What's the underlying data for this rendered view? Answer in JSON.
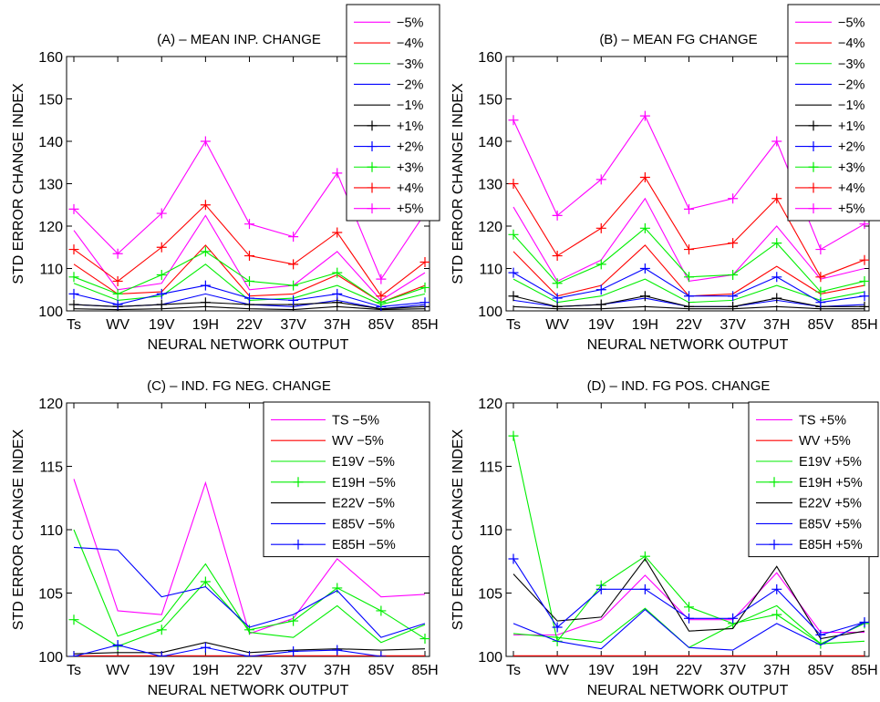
{
  "chart_data": [
    {
      "type": "line",
      "title": "(A) – MEAN INP. CHANGE",
      "xlabel": "NEURAL NETWORK OUTPUT",
      "ylabel": "STD ERROR CHANGE INDEX",
      "categories": [
        "Ts",
        "WV",
        "19V",
        "19H",
        "22V",
        "37V",
        "37H",
        "85V",
        "85H"
      ],
      "ylim": [
        100,
        160
      ],
      "yticks": [
        100,
        110,
        120,
        130,
        140,
        150,
        160
      ],
      "grid": false,
      "legend_position": "top-right",
      "series": [
        {
          "name": "−5%",
          "color": "#ff00ff",
          "marker": "none",
          "values": [
            119,
            105,
            106.5,
            122.5,
            105,
            106,
            114,
            102.5,
            109
          ]
        },
        {
          "name": "−4%",
          "color": "#ff0000",
          "marker": "none",
          "values": [
            111,
            104,
            104.5,
            115.5,
            103.5,
            104,
            108.5,
            102,
            106
          ]
        },
        {
          "name": "−3%",
          "color": "#00ee00",
          "marker": "none",
          "values": [
            106.5,
            102.5,
            103.5,
            111,
            102.5,
            103,
            106,
            101.5,
            104
          ]
        },
        {
          "name": "−2%",
          "color": "#0000ff",
          "marker": "none",
          "values": [
            101.5,
            101,
            101.5,
            104,
            101.5,
            101,
            102.5,
            100.5,
            101.5
          ]
        },
        {
          "name": "−1%",
          "color": "#000000",
          "marker": "none",
          "values": [
            100.5,
            100.3,
            100.5,
            101,
            100.5,
            100.3,
            101,
            100.3,
            100.5
          ]
        },
        {
          "name": "+1%",
          "color": "#000000",
          "marker": "plus",
          "values": [
            101.5,
            101,
            101.5,
            102,
            101.5,
            101.5,
            102,
            100.5,
            101
          ]
        },
        {
          "name": "+2%",
          "color": "#0000ff",
          "marker": "plus",
          "values": [
            104,
            101.5,
            104,
            106,
            103,
            102.5,
            104,
            101,
            102
          ]
        },
        {
          "name": "+3%",
          "color": "#00ee00",
          "marker": "plus",
          "values": [
            108,
            104,
            108.5,
            114,
            107,
            106,
            109,
            102,
            105.5
          ]
        },
        {
          "name": "+4%",
          "color": "#ff0000",
          "marker": "plus",
          "values": [
            114.5,
            107,
            115,
            125,
            113,
            111,
            118.5,
            103.5,
            111.5
          ]
        },
        {
          "name": "+5%",
          "color": "#ff00ff",
          "marker": "plus",
          "values": [
            124,
            113.5,
            123,
            140,
            120.5,
            117.5,
            132.5,
            107.5,
            123
          ]
        }
      ]
    },
    {
      "type": "line",
      "title": "(B) – MEAN FG CHANGE",
      "xlabel": "NEURAL NETWORK OUTPUT",
      "ylabel": "STD ERROR CHANGE INDEX",
      "categories": [
        "Ts",
        "WV",
        "19V",
        "19H",
        "22V",
        "37V",
        "37H",
        "85V",
        "85H"
      ],
      "ylim": [
        100,
        160
      ],
      "yticks": [
        100,
        110,
        120,
        130,
        140,
        150,
        160
      ],
      "grid": false,
      "legend_position": "top-right",
      "series": [
        {
          "name": "−5%",
          "color": "#ff00ff",
          "marker": "none",
          "values": [
            124.5,
            107,
            112,
            126.5,
            107,
            108.5,
            120,
            107.5,
            110
          ]
        },
        {
          "name": "−4%",
          "color": "#ff0000",
          "marker": "none",
          "values": [
            114,
            103.5,
            106,
            115.5,
            103.5,
            104,
            110.5,
            104,
            106
          ]
        },
        {
          "name": "−3%",
          "color": "#00ee00",
          "marker": "none",
          "values": [
            107.5,
            102,
            103.5,
            107.5,
            102,
            102.5,
            106,
            102.5,
            104.5
          ]
        },
        {
          "name": "−2%",
          "color": "#0000ff",
          "marker": "none",
          "values": [
            102.5,
            101,
            101.5,
            103,
            101,
            101,
            102.5,
            101,
            101.5
          ]
        },
        {
          "name": "−1%",
          "color": "#000000",
          "marker": "none",
          "values": [
            101,
            100.5,
            100.5,
            101,
            100.5,
            100.5,
            101,
            100.5,
            100.5
          ]
        },
        {
          "name": "+1%",
          "color": "#000000",
          "marker": "plus",
          "values": [
            103.5,
            101,
            101.5,
            103.5,
            101,
            101,
            103,
            101,
            101
          ]
        },
        {
          "name": "+2%",
          "color": "#0000ff",
          "marker": "plus",
          "values": [
            109,
            103,
            105,
            110,
            103.5,
            103.5,
            108,
            102,
            103.5
          ]
        },
        {
          "name": "+3%",
          "color": "#00ee00",
          "marker": "plus",
          "values": [
            118,
            106.5,
            111,
            119.5,
            108,
            108.5,
            116,
            104.5,
            107
          ]
        },
        {
          "name": "+4%",
          "color": "#ff0000",
          "marker": "plus",
          "values": [
            130,
            113,
            119.5,
            131.5,
            114.5,
            116,
            126.5,
            108,
            112
          ]
        },
        {
          "name": "+5%",
          "color": "#ff00ff",
          "marker": "plus",
          "values": [
            145,
            122.5,
            131,
            146,
            124,
            126.5,
            140,
            114.5,
            120.5
          ]
        }
      ]
    },
    {
      "type": "line",
      "title": "(C) – IND. FG NEG. CHANGE",
      "xlabel": "NEURAL NETWORK OUTPUT",
      "ylabel": "STD ERROR CHANGE INDEX",
      "categories": [
        "Ts",
        "WV",
        "19V",
        "19H",
        "22V",
        "37V",
        "37H",
        "85V",
        "85H"
      ],
      "ylim": [
        100,
        120
      ],
      "yticks": [
        100,
        105,
        110,
        115,
        120
      ],
      "grid": false,
      "legend_position": "top-right",
      "series": [
        {
          "name": "TS −5%",
          "color": "#ff00ff",
          "marker": "none",
          "values": [
            114,
            103.6,
            103.3,
            113.7,
            101.8,
            103,
            107.7,
            104.7,
            104.9
          ]
        },
        {
          "name": "WV −5%",
          "color": "#ff0000",
          "marker": "none",
          "values": [
            100.05,
            100.05,
            100.05,
            100.05,
            100.05,
            100.05,
            100.05,
            100.05,
            100.05
          ]
        },
        {
          "name": "E19V −5%",
          "color": "#00ee00",
          "marker": "none",
          "values": [
            110,
            101.6,
            102.8,
            107.3,
            101.9,
            101.5,
            104,
            101.1,
            102.5
          ]
        },
        {
          "name": "E19H −5%",
          "color": "#00ee00",
          "marker": "plus",
          "values": [
            102.9,
            100.8,
            102.1,
            105.9,
            102.1,
            102.8,
            105.4,
            103.6,
            101.4
          ]
        },
        {
          "name": "E22V −5%",
          "color": "#000000",
          "marker": "none",
          "values": [
            100.2,
            100.3,
            100.3,
            101.1,
            100.3,
            100.5,
            100.6,
            100.5,
            100.6
          ]
        },
        {
          "name": "E85V −5%",
          "color": "#0000ff",
          "marker": "none",
          "values": [
            108.6,
            108.4,
            104.7,
            105.5,
            102.3,
            103.3,
            105.2,
            101.5,
            102.6
          ]
        },
        {
          "name": "E85H −5%",
          "color": "#0000ff",
          "marker": "plus",
          "values": [
            100,
            100.9,
            100,
            100.7,
            100,
            100.4,
            100.5,
            100,
            null
          ]
        }
      ]
    },
    {
      "type": "line",
      "title": "(D) – IND. FG POS. CHANGE",
      "xlabel": "NEURAL NETWORK OUTPUT",
      "ylabel": "STD ERROR CHANGE INDEX",
      "categories": [
        "Ts",
        "WV",
        "19V",
        "19H",
        "22V",
        "37V",
        "37H",
        "85V",
        "85H"
      ],
      "ylim": [
        100,
        120
      ],
      "yticks": [
        100,
        105,
        110,
        115,
        120
      ],
      "grid": false,
      "legend_position": "top-right",
      "series": [
        {
          "name": "TS +5%",
          "color": "#ff00ff",
          "marker": "none",
          "values": [
            101.7,
            101.7,
            102.9,
            106.4,
            102.9,
            102.9,
            106.6,
            101.9,
            101.9
          ]
        },
        {
          "name": "WV +5%",
          "color": "#ff0000",
          "marker": "none",
          "values": [
            100.05,
            100.05,
            100.05,
            100.05,
            100.05,
            100.05,
            100.05,
            100.05,
            100.05
          ]
        },
        {
          "name": "E19V +5%",
          "color": "#00ee00",
          "marker": "none",
          "values": [
            101.8,
            101.5,
            101.1,
            103.8,
            100.7,
            102.5,
            104,
            101,
            101.2
          ]
        },
        {
          "name": "E19H +5%",
          "color": "#00ee00",
          "marker": "plus",
          "values": [
            117.4,
            101.2,
            105.6,
            107.9,
            103.9,
            102.6,
            103.3,
            101,
            102.6
          ]
        },
        {
          "name": "E22V +5%",
          "color": "#000000",
          "marker": "none",
          "values": [
            106.5,
            102.8,
            103.1,
            107.7,
            102,
            102.2,
            107.1,
            101.4,
            102
          ]
        },
        {
          "name": "E85V +5%",
          "color": "#0000ff",
          "marker": "none",
          "values": [
            102.6,
            101.2,
            100.6,
            103.7,
            100.7,
            100.5,
            102.6,
            100.9,
            102.7
          ]
        },
        {
          "name": "E85H +5%",
          "color": "#0000ff",
          "marker": "plus",
          "values": [
            107.7,
            102.3,
            105.3,
            105.3,
            103,
            103,
            105.3,
            101.7,
            102.7
          ]
        }
      ]
    }
  ]
}
